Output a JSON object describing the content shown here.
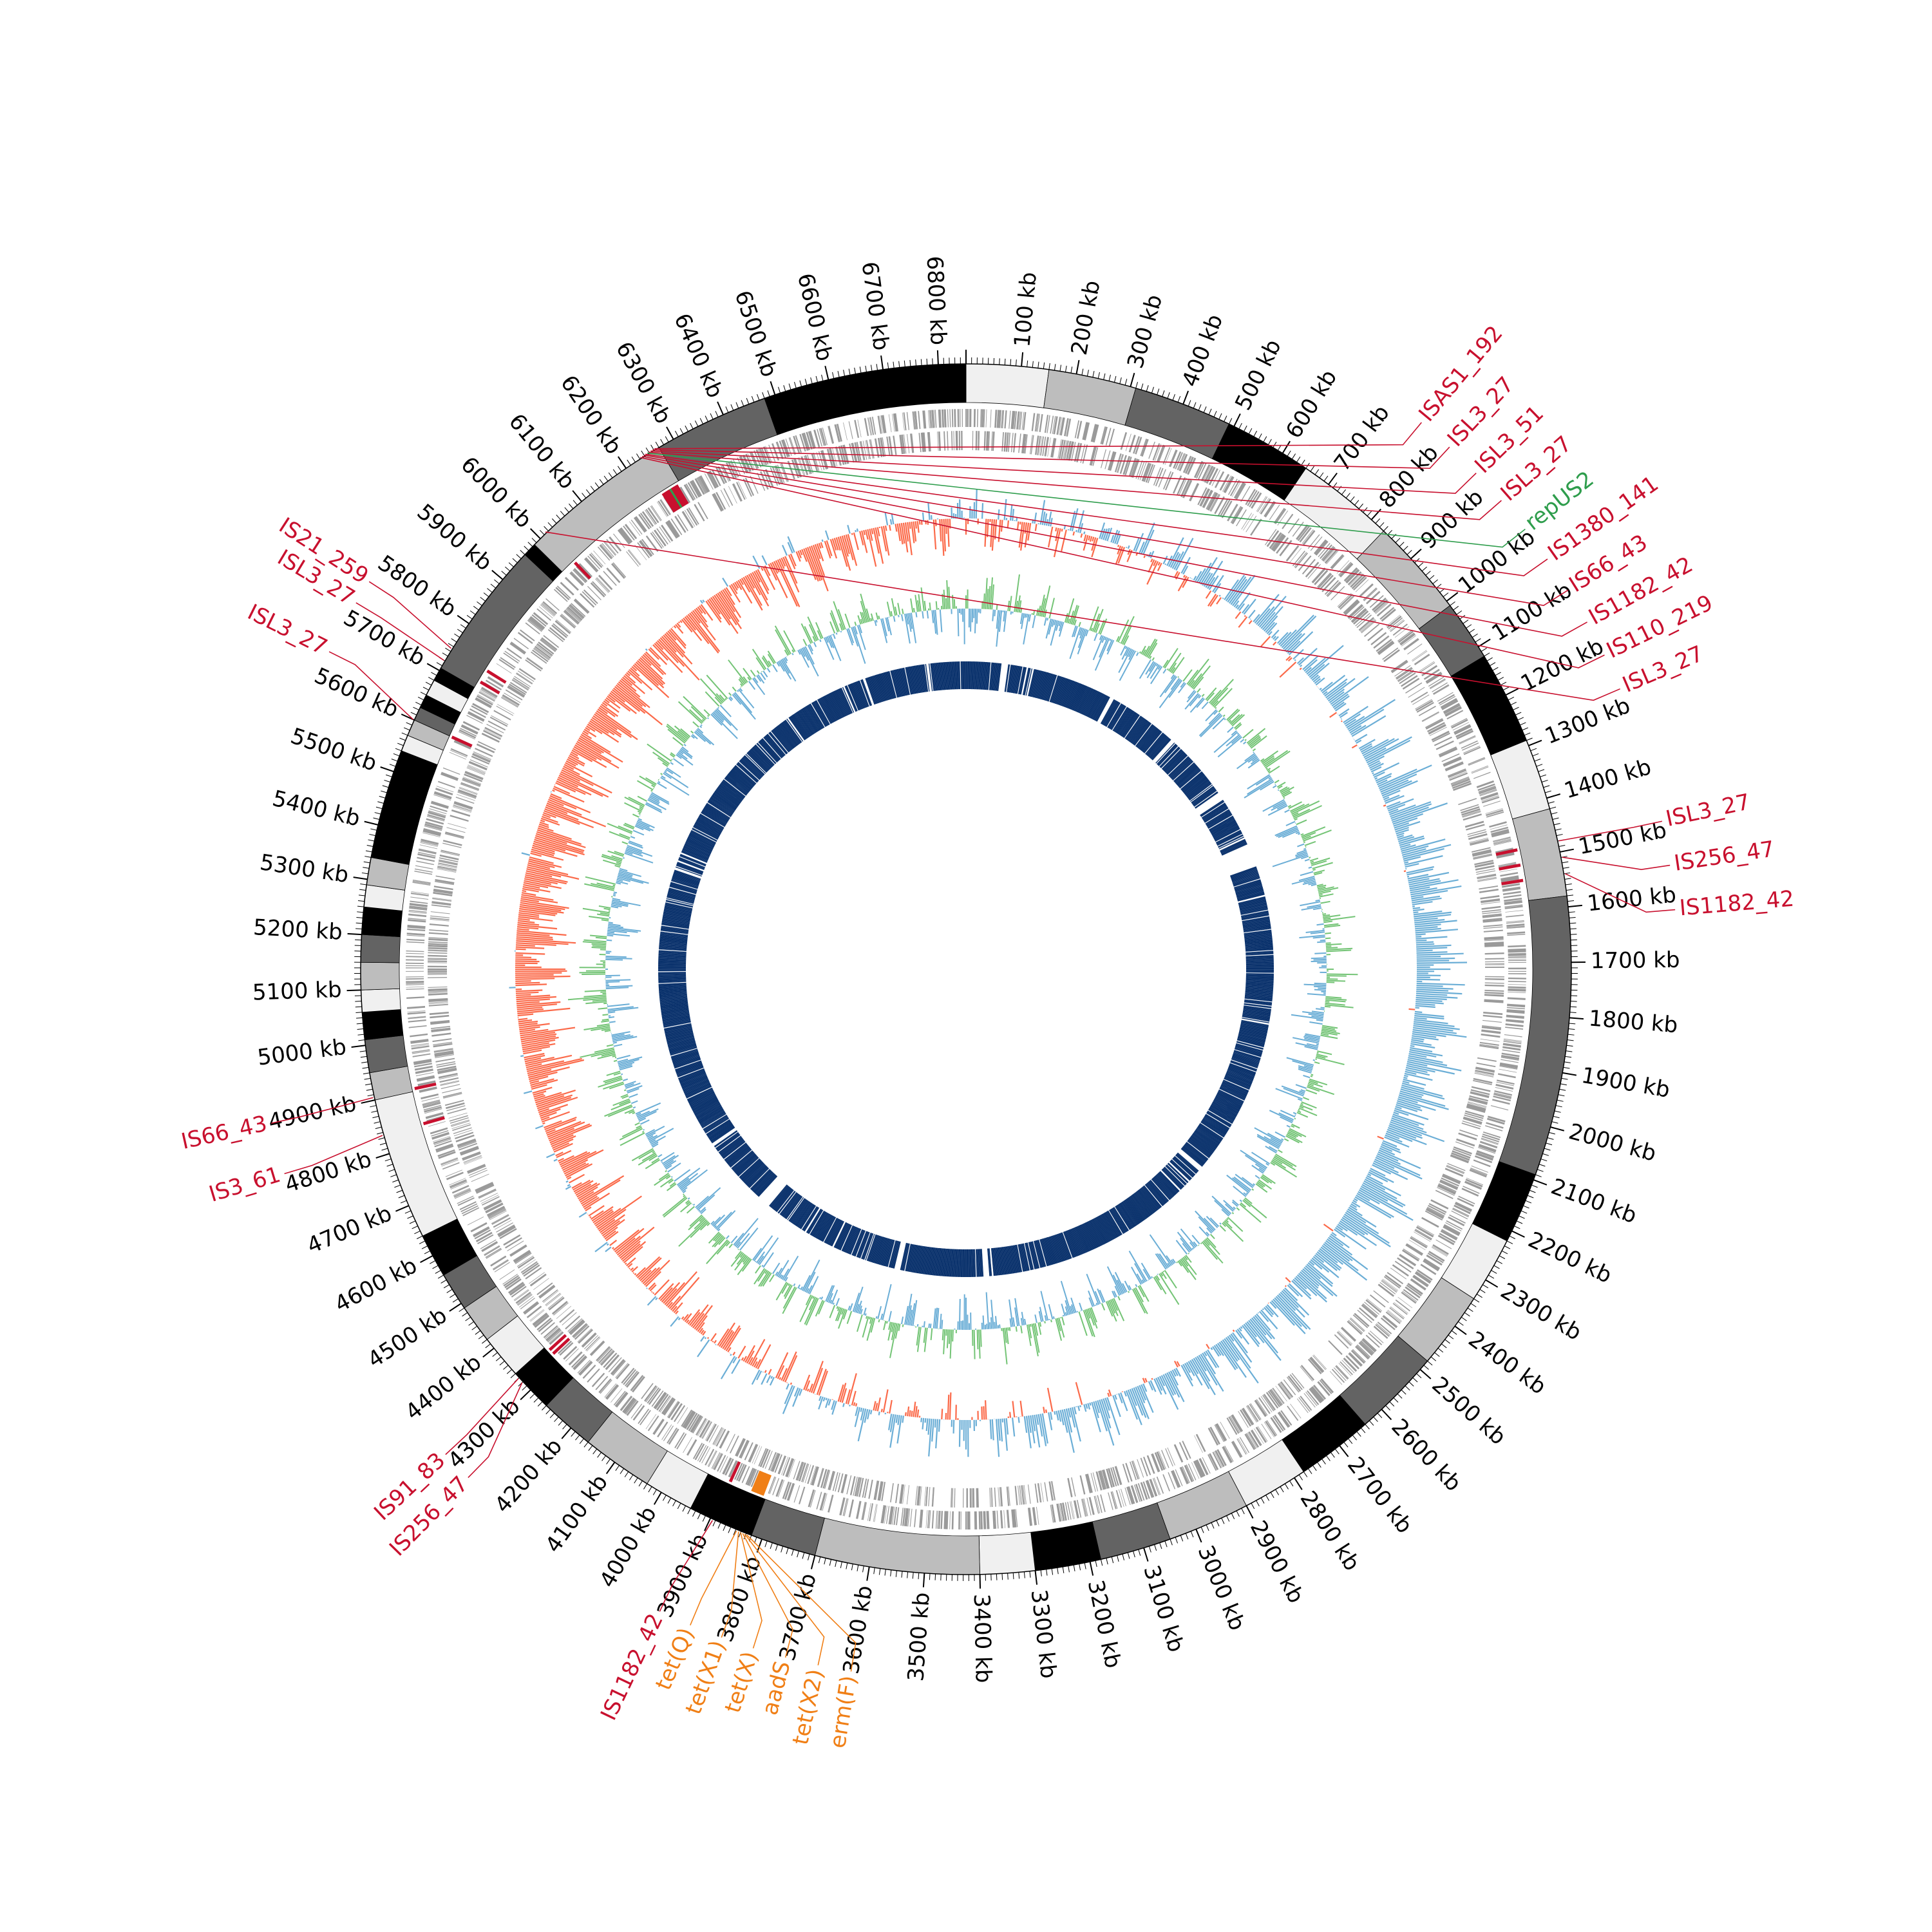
{
  "genome": {
    "length_kb": 6850
  },
  "axis": {
    "tick_labels": [
      "100 kb",
      "200 kb",
      "300 kb",
      "400 kb",
      "500 kb",
      "600 kb",
      "700 kb",
      "800 kb",
      "900 kb",
      "1000 kb",
      "1100 kb",
      "1200 kb",
      "1300 kb",
      "1400 kb",
      "1500 kb",
      "1600 kb",
      "1700 kb",
      "1800 kb",
      "1900 kb",
      "2000 kb",
      "2100 kb",
      "2200 kb",
      "2300 kb",
      "2400 kb",
      "2500 kb",
      "2600 kb",
      "2700 kb",
      "2800 kb",
      "2900 kb",
      "3000 kb",
      "3100 kb",
      "3200 kb",
      "3300 kb",
      "3400 kb",
      "3500 kb",
      "3600 kb",
      "3700 kb",
      "3800 kb",
      "3900 kb",
      "4000 kb",
      "4100 kb",
      "4200 kb",
      "4300 kb",
      "4400 kb",
      "4500 kb",
      "4600 kb",
      "4700 kb",
      "4800 kb",
      "4900 kb",
      "5000 kb",
      "5100 kb",
      "5200 kb",
      "5300 kb",
      "5400 kb",
      "5500 kb",
      "5600 kb",
      "5700 kb",
      "5800 kb",
      "5900 kb",
      "6000 kb",
      "6100 kb",
      "6200 kb",
      "6300 kb",
      "6400 kb",
      "6500 kb",
      "6600 kb",
      "6700 kb",
      "6800 kb"
    ]
  },
  "contigs": [
    {
      "start": 0,
      "end": 150,
      "shade": "#f0f0f0"
    },
    {
      "start": 150,
      "end": 310,
      "shade": "#bdbdbd"
    },
    {
      "start": 310,
      "end": 490,
      "shade": "#636363"
    },
    {
      "start": 490,
      "end": 650,
      "shade": "#000000"
    },
    {
      "start": 650,
      "end": 830,
      "shade": "#f0f0f0"
    },
    {
      "start": 830,
      "end": 1010,
      "shade": "#bdbdbd"
    },
    {
      "start": 1010,
      "end": 1120,
      "shade": "#636363"
    },
    {
      "start": 1120,
      "end": 1290,
      "shade": "#000000"
    },
    {
      "start": 1290,
      "end": 1420,
      "shade": "#f0f0f0"
    },
    {
      "start": 1420,
      "end": 1580,
      "shade": "#bdbdbd"
    },
    {
      "start": 1580,
      "end": 2090,
      "shade": "#636363"
    },
    {
      "start": 2090,
      "end": 2220,
      "shade": "#000000"
    },
    {
      "start": 2220,
      "end": 2340,
      "shade": "#f0f0f0"
    },
    {
      "start": 2340,
      "end": 2480,
      "shade": "#bdbdbd"
    },
    {
      "start": 2480,
      "end": 2640,
      "shade": "#636363"
    },
    {
      "start": 2640,
      "end": 2780,
      "shade": "#000000"
    },
    {
      "start": 2780,
      "end": 2900,
      "shade": "#f0f0f0"
    },
    {
      "start": 2900,
      "end": 3050,
      "shade": "#bdbdbd"
    },
    {
      "start": 3050,
      "end": 3180,
      "shade": "#636363"
    },
    {
      "start": 3180,
      "end": 3300,
      "shade": "#000000"
    },
    {
      "start": 3300,
      "end": 3400,
      "shade": "#f0f0f0"
    },
    {
      "start": 3400,
      "end": 3700,
      "shade": "#bdbdbd"
    },
    {
      "start": 3700,
      "end": 3820,
      "shade": "#636363"
    },
    {
      "start": 3820,
      "end": 3940,
      "shade": "#000000"
    },
    {
      "start": 3940,
      "end": 4030,
      "shade": "#f0f0f0"
    },
    {
      "start": 4030,
      "end": 4160,
      "shade": "#bdbdbd"
    },
    {
      "start": 4160,
      "end": 4260,
      "shade": "#636363"
    },
    {
      "start": 4260,
      "end": 4340,
      "shade": "#000000"
    },
    {
      "start": 4340,
      "end": 4420,
      "shade": "#f0f0f0"
    },
    {
      "start": 4420,
      "end": 4490,
      "shade": "#bdbdbd"
    },
    {
      "start": 4490,
      "end": 4560,
      "shade": "#636363"
    },
    {
      "start": 4560,
      "end": 4640,
      "shade": "#000000"
    },
    {
      "start": 4640,
      "end": 4900,
      "shade": "#f0f0f0"
    },
    {
      "start": 4900,
      "end": 4950,
      "shade": "#bdbdbd"
    },
    {
      "start": 4950,
      "end": 5010,
      "shade": "#636363"
    },
    {
      "start": 5010,
      "end": 5060,
      "shade": "#000000"
    },
    {
      "start": 5060,
      "end": 5100,
      "shade": "#f0f0f0"
    },
    {
      "start": 5100,
      "end": 5150,
      "shade": "#bdbdbd"
    },
    {
      "start": 5150,
      "end": 5200,
      "shade": "#636363"
    },
    {
      "start": 5200,
      "end": 5250,
      "shade": "#000000"
    },
    {
      "start": 5250,
      "end": 5290,
      "shade": "#f0f0f0"
    },
    {
      "start": 5290,
      "end": 5340,
      "shade": "#bdbdbd"
    },
    {
      "start": 5340,
      "end": 5540,
      "shade": "#000000"
    },
    {
      "start": 5540,
      "end": 5570,
      "shade": "#f0f0f0"
    },
    {
      "start": 5570,
      "end": 5600,
      "shade": "#bdbdbd"
    },
    {
      "start": 5600,
      "end": 5625,
      "shade": "#636363"
    },
    {
      "start": 5625,
      "end": 5650,
      "shade": "#000000"
    },
    {
      "start": 5650,
      "end": 5680,
      "shade": "#f0f0f0"
    },
    {
      "start": 5680,
      "end": 5705,
      "shade": "#000000"
    },
    {
      "start": 5705,
      "end": 5960,
      "shade": "#636363"
    },
    {
      "start": 5960,
      "end": 5985,
      "shade": "#000000"
    },
    {
      "start": 5985,
      "end": 6270,
      "shade": "#bdbdbd"
    },
    {
      "start": 6270,
      "end": 6480,
      "shade": "#636363"
    },
    {
      "start": 6480,
      "end": 6850,
      "shade": "#000000"
    }
  ],
  "features": [
    {
      "label": "ISAS1_192",
      "pos": 6262,
      "kind": "is",
      "color": "#c8102e"
    },
    {
      "label": "ISL3_27",
      "pos": 6258,
      "kind": "is",
      "color": "#c8102e"
    },
    {
      "label": "ISL3_51",
      "pos": 6254,
      "kind": "is",
      "color": "#c8102e"
    },
    {
      "label": "ISL3_27",
      "pos": 6250,
      "kind": "is",
      "color": "#c8102e"
    },
    {
      "label": "repUS2",
      "pos": 6247,
      "kind": "rep",
      "color": "#2e9d4c"
    },
    {
      "label": "IS1380_141",
      "pos": 6243,
      "kind": "is",
      "color": "#c8102e"
    },
    {
      "label": "IS66_43",
      "pos": 6240,
      "kind": "is",
      "color": "#c8102e"
    },
    {
      "label": "IS1182_42",
      "pos": 6236,
      "kind": "is",
      "color": "#c8102e"
    },
    {
      "label": "IS110_219",
      "pos": 6232,
      "kind": "is",
      "color": "#c8102e"
    },
    {
      "label": "ISL3_27",
      "pos": 6015,
      "kind": "is",
      "color": "#c8102e"
    },
    {
      "label": "IS21_259",
      "pos": 5745,
      "kind": "is",
      "color": "#c8102e"
    },
    {
      "label": "ISL3_27",
      "pos": 5720,
      "kind": "is",
      "color": "#c8102e"
    },
    {
      "label": "ISL3_27",
      "pos": 5600,
      "kind": "is",
      "color": "#c8102e"
    },
    {
      "label": "IS66_43",
      "pos": 4905,
      "kind": "is",
      "color": "#c8102e"
    },
    {
      "label": "IS3_61",
      "pos": 4835,
      "kind": "is",
      "color": "#c8102e"
    },
    {
      "label": "IS91_83",
      "pos": 4330,
      "kind": "is",
      "color": "#c8102e"
    },
    {
      "label": "IS256_47",
      "pos": 4320,
      "kind": "is",
      "color": "#c8102e"
    },
    {
      "label": "IS1182_42",
      "pos": 3895,
      "kind": "is",
      "color": "#c8102e"
    },
    {
      "label": "tet(Q)",
      "pos": 3848,
      "kind": "amr",
      "color": "#f07f16"
    },
    {
      "label": "tet(X1)",
      "pos": 3844,
      "kind": "amr",
      "color": "#f07f16"
    },
    {
      "label": "tet(X)",
      "pos": 3840,
      "kind": "amr",
      "color": "#f07f16"
    },
    {
      "label": "aadS",
      "pos": 3836,
      "kind": "amr",
      "color": "#f07f16"
    },
    {
      "label": "tet(X2)",
      "pos": 3832,
      "kind": "amr",
      "color": "#f07f16"
    },
    {
      "label": "erm(F)",
      "pos": 3828,
      "kind": "amr",
      "color": "#f07f16"
    },
    {
      "label": "ISL3_27",
      "pos": 1480,
      "kind": "is",
      "color": "#c8102e"
    },
    {
      "label": "IS256_47",
      "pos": 1510,
      "kind": "is",
      "color": "#c8102e"
    },
    {
      "label": "IS1182_42",
      "pos": 1540,
      "kind": "is",
      "color": "#c8102e"
    }
  ],
  "tracks": {
    "cds_color": "#9a9a9a",
    "gc_skew_positive_color": "#6baed6",
    "gc_skew_negative_color": "#fb6a4a",
    "gc_content_color": "#74c476",
    "gc_content_alt_color": "#6baed6",
    "homology_color": "#08306b",
    "homology_gaps_kb": [
      [
        125,
        150
      ],
      [
        530,
        545
      ],
      [
        795,
        810
      ],
      [
        1045,
        1075
      ],
      [
        1255,
        1340
      ],
      [
        2470,
        2490
      ],
      [
        3340,
        3360
      ],
      [
        3660,
        3680
      ],
      [
        4180,
        4230
      ],
      [
        4470,
        4480
      ]
    ]
  }
}
